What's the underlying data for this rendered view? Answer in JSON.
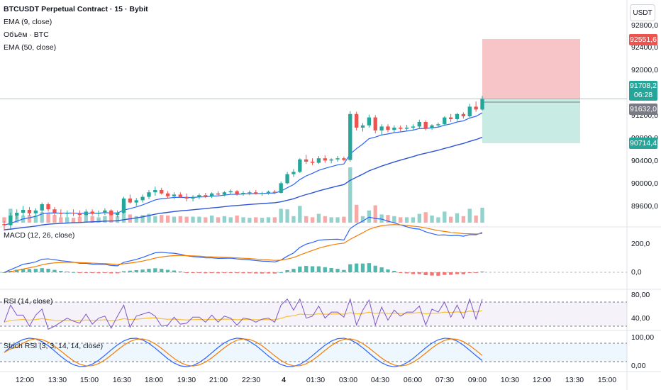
{
  "header": {
    "title": "BTCUSDT Perpetual Contract · 15 · Bybit",
    "ema9": "EMA (9, close)",
    "volume": "Объём · BTC",
    "ema50": "EMA (50, close)",
    "unit": "USDT"
  },
  "price_axis": {
    "ticks": [
      "92800,0",
      "92400,0",
      "92000,0",
      "91200,0",
      "90800,0",
      "90400,0",
      "90000,0",
      "89600,0"
    ],
    "tag_stop": "92551,6",
    "tag_last": "91708,2",
    "tag_countdown": "06:28",
    "tag_entry": "91632,0",
    "tag_target": "90714,4"
  },
  "panes": {
    "macd": {
      "label": "MACD (12, 26, close)",
      "ticks": [
        "200,0",
        "0,0"
      ]
    },
    "rsi": {
      "label": "RSI (14, close)",
      "ticks": [
        "80,00",
        "40,00"
      ]
    },
    "stoch": {
      "label": "Stoch RSI (3, 3, 14, 14, close)",
      "ticks": [
        "100,00",
        "0,00"
      ]
    }
  },
  "time_axis": [
    "12:00",
    "13:30",
    "15:00",
    "16:30",
    "18:00",
    "19:30",
    "21:00",
    "22:30",
    "4",
    "01:30",
    "03:00",
    "04:30",
    "06:00",
    "07:30",
    "09:00",
    "10:30",
    "12:00",
    "13:30",
    "15:00"
  ],
  "colors": {
    "up": "#26a69a",
    "down": "#ef5350",
    "ema9": "#2962ff",
    "ema50": "#2f54d6",
    "signal": "#f57c00",
    "rsi": "#7e57c2",
    "rsi_ma": "#fbc02d",
    "stop": "#f7c5c7",
    "target": "#c8ebe4"
  },
  "chart_data": {
    "type": "candlestick",
    "interval": "15",
    "candles": [
      [
        89500,
        89550,
        89380,
        89480
      ],
      [
        89480,
        89700,
        89420,
        89650
      ],
      [
        89650,
        89760,
        89580,
        89700
      ],
      [
        89700,
        89820,
        89640,
        89750
      ],
      [
        89750,
        89800,
        89650,
        89690
      ],
      [
        89690,
        89780,
        89620,
        89740
      ],
      [
        89740,
        89880,
        89700,
        89850
      ],
      [
        89850,
        89880,
        89720,
        89760
      ],
      [
        89760,
        89800,
        89650,
        89700
      ],
      [
        89700,
        89760,
        89620,
        89680
      ],
      [
        89680,
        89740,
        89620,
        89700
      ],
      [
        89700,
        89760,
        89640,
        89690
      ],
      [
        89690,
        89740,
        89620,
        89660
      ],
      [
        89660,
        89760,
        89640,
        89720
      ],
      [
        89720,
        89760,
        89650,
        89680
      ],
      [
        89680,
        89740,
        89630,
        89700
      ],
      [
        89700,
        89780,
        89660,
        89740
      ],
      [
        89740,
        89760,
        89640,
        89660
      ],
      [
        89660,
        89740,
        89620,
        89700
      ],
      [
        89700,
        89980,
        89680,
        89950
      ],
      [
        89950,
        90020,
        89860,
        89880
      ],
      [
        89880,
        89960,
        89820,
        89920
      ],
      [
        89920,
        90020,
        89880,
        89980
      ],
      [
        89980,
        90100,
        89940,
        90060
      ],
      [
        90060,
        90160,
        90000,
        90100
      ],
      [
        90100,
        90140,
        90020,
        90040
      ],
      [
        90040,
        90080,
        89960,
        89990
      ],
      [
        89990,
        90060,
        89940,
        90020
      ],
      [
        90020,
        90060,
        89960,
        89980
      ],
      [
        89980,
        90040,
        89900,
        89950
      ],
      [
        89950,
        90010,
        89900,
        89980
      ],
      [
        89980,
        90040,
        89940,
        90010
      ],
      [
        90010,
        90050,
        89960,
        89990
      ],
      [
        89990,
        90060,
        89960,
        90040
      ],
      [
        90040,
        90080,
        89990,
        90020
      ],
      [
        90020,
        90080,
        89990,
        90060
      ],
      [
        90060,
        90110,
        90020,
        90080
      ],
      [
        90080,
        90100,
        90000,
        90030
      ],
      [
        90030,
        90080,
        90000,
        90050
      ],
      [
        90050,
        90090,
        90010,
        90060
      ],
      [
        90060,
        90100,
        90020,
        90040
      ],
      [
        90040,
        90070,
        90000,
        90050
      ],
      [
        90050,
        90090,
        90020,
        90070
      ],
      [
        90070,
        90100,
        90030,
        90050
      ],
      [
        90050,
        90250,
        90040,
        90220
      ],
      [
        90220,
        90420,
        90200,
        90380
      ],
      [
        90380,
        90470,
        90330,
        90420
      ],
      [
        90420,
        90660,
        90400,
        90640
      ],
      [
        90640,
        90720,
        90560,
        90600
      ],
      [
        90600,
        90660,
        90540,
        90580
      ],
      [
        90580,
        90700,
        90560,
        90660
      ],
      [
        90660,
        90710,
        90580,
        90620
      ],
      [
        90620,
        90660,
        90570,
        90640
      ],
      [
        90640,
        90700,
        90600,
        90660
      ],
      [
        90660,
        90690,
        90610,
        90630
      ],
      [
        90630,
        91490,
        90600,
        91440
      ],
      [
        91440,
        91480,
        91150,
        91200
      ],
      [
        91200,
        91280,
        91130,
        91240
      ],
      [
        91240,
        91430,
        91200,
        91380
      ],
      [
        91380,
        91420,
        91100,
        91150
      ],
      [
        91150,
        91260,
        91060,
        91220
      ],
      [
        91220,
        91260,
        91120,
        91160
      ],
      [
        91160,
        91240,
        91120,
        91200
      ],
      [
        91200,
        91240,
        91140,
        91180
      ],
      [
        91180,
        91250,
        91140,
        91200
      ],
      [
        91200,
        91260,
        91160,
        91220
      ],
      [
        91220,
        91340,
        91180,
        91300
      ],
      [
        91300,
        91330,
        91150,
        91190
      ],
      [
        91190,
        91260,
        91160,
        91240
      ],
      [
        91240,
        91290,
        91200,
        91260
      ],
      [
        91260,
        91400,
        91230,
        91380
      ],
      [
        91380,
        91440,
        91300,
        91350
      ],
      [
        91350,
        91460,
        91320,
        91440
      ],
      [
        91440,
        91470,
        91360,
        91400
      ],
      [
        91400,
        91620,
        91380,
        91570
      ],
      [
        91570,
        91660,
        91480,
        91520
      ],
      [
        91520,
        91760,
        91500,
        91708
      ]
    ],
    "macd_ticks": [
      200,
      0
    ],
    "rsi_ticks": [
      80,
      40
    ],
    "stoch_ticks": [
      100,
      0
    ]
  }
}
